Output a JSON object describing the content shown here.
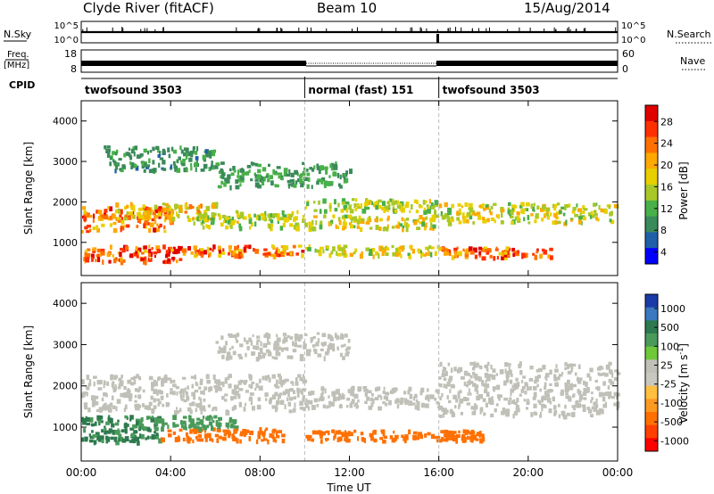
{
  "header": {
    "station": "Clyde River (fitACF)",
    "beam": "Beam 10",
    "date": "15/Aug/2014"
  },
  "noise_panel": {
    "left_label": "N.Sky",
    "left_ticks": [
      "10^5",
      "10^0"
    ],
    "right_label": "N.Search",
    "right_ticks": [
      "10^5",
      "10^0"
    ]
  },
  "freq_panel": {
    "left_label_1": "Freq.",
    "left_label_2": "[MHz]",
    "left_ticks": [
      "18",
      "8"
    ],
    "right_label": "Nave",
    "right_ticks": [
      "60",
      "0"
    ]
  },
  "cpid_panel": {
    "label": "CPID",
    "segments": [
      {
        "text": "twofsound 3503",
        "start_hour": 0,
        "end_hour": 10
      },
      {
        "text": "normal (fast) 151",
        "start_hour": 10,
        "end_hour": 16
      },
      {
        "text": "twofsound 3503",
        "start_hour": 16,
        "end_hour": 24
      }
    ]
  },
  "x_axis": {
    "label": "Time UT",
    "ticks": [
      "00:00",
      "04:00",
      "08:00",
      "12:00",
      "16:00",
      "20:00",
      "00:00"
    ],
    "range_hours": [
      0,
      24
    ]
  },
  "power_colorbar": {
    "label": "Power [dB]",
    "ticks": [
      "28",
      "24",
      "20",
      "16",
      "12",
      "8",
      "4"
    ],
    "colors": [
      "#e00000",
      "#ff3000",
      "#ff7000",
      "#ffa800",
      "#e8d000",
      "#a8c828",
      "#48b048",
      "#3a8a5a",
      "#1f5fa8",
      "#0000ff"
    ]
  },
  "velocity_colorbar": {
    "label": "Velocity [m s",
    "label_sup": "-1",
    "label_end": "]",
    "ticks": [
      "1000",
      "500",
      "100",
      "25",
      "-25",
      "-100",
      "-500",
      "-1000"
    ],
    "colors": [
      "#1a3aa8",
      "#3a78c0",
      "#2e7a4e",
      "#4a9a5a",
      "#6ec83a",
      "#c0c0b8",
      "#c8c8c0",
      "#ffc040",
      "#ff9a20",
      "#ff7000",
      "#ff4000",
      "#ff0000"
    ]
  },
  "chart_data": [
    {
      "type": "heatmap",
      "title": "Power",
      "ylabel": "Slant Range [km]",
      "xlabel": "",
      "ylim": [
        180,
        4500
      ],
      "xlim": [
        0,
        24
      ],
      "yticks": [
        "1000",
        "2000",
        "3000",
        "4000"
      ],
      "colorbar_range": [
        0,
        30
      ],
      "bands": [
        {
          "t0": 0.0,
          "t1": 4.0,
          "r0": 1300,
          "r1": 1900,
          "value": 22
        },
        {
          "t0": 0.0,
          "t1": 4.5,
          "r0": 550,
          "r1": 950,
          "value": 24
        },
        {
          "t0": 1.5,
          "t1": 6.0,
          "r0": 1600,
          "r1": 2000,
          "value": 17
        },
        {
          "t0": 4.5,
          "t1": 10.0,
          "r0": 700,
          "r1": 950,
          "value": 22
        },
        {
          "t0": 5.0,
          "t1": 10.0,
          "r0": 1400,
          "r1": 1800,
          "value": 14
        },
        {
          "t0": 10.0,
          "t1": 16.0,
          "r0": 1350,
          "r1": 1700,
          "value": 16
        },
        {
          "t0": 10.0,
          "t1": 16.0,
          "r0": 1800,
          "r1": 2100,
          "value": 14
        },
        {
          "t0": 10.0,
          "t1": 16.0,
          "r0": 700,
          "r1": 950,
          "value": 16
        },
        {
          "t0": 16.0,
          "t1": 21.0,
          "r0": 650,
          "r1": 900,
          "value": 22
        },
        {
          "t0": 16.0,
          "t1": 24.0,
          "r0": 1500,
          "r1": 2000,
          "value": 15
        },
        {
          "t0": 1.0,
          "t1": 6.0,
          "r0": 2800,
          "r1": 3400,
          "value": 8
        },
        {
          "t0": 6.0,
          "t1": 12.0,
          "r0": 2400,
          "r1": 3000,
          "value": 9
        }
      ]
    },
    {
      "type": "heatmap",
      "title": "Velocity",
      "ylabel": "Slant Range [km]",
      "xlabel": "Time UT",
      "ylim": [
        180,
        4500
      ],
      "xlim": [
        0,
        24
      ],
      "yticks": [
        "1000",
        "2000",
        "3000",
        "4000"
      ],
      "colorbar_range": [
        -1000,
        1000
      ],
      "bands": [
        {
          "t0": 0.0,
          "t1": 10.0,
          "r0": 1400,
          "r1": 2300,
          "value": 0
        },
        {
          "t0": 0.0,
          "t1": 3.5,
          "r0": 650,
          "r1": 1300,
          "value": 120
        },
        {
          "t0": 3.5,
          "t1": 9.0,
          "r0": 700,
          "r1": 1000,
          "value": -150
        },
        {
          "t0": 2.5,
          "t1": 7.0,
          "r0": 1000,
          "r1": 1300,
          "value": 60
        },
        {
          "t0": 10.0,
          "t1": 16.0,
          "r0": 1500,
          "r1": 2000,
          "value": 0
        },
        {
          "t0": 10.0,
          "t1": 16.0,
          "r0": 700,
          "r1": 950,
          "value": -300
        },
        {
          "t0": 16.0,
          "t1": 24.0,
          "r0": 1300,
          "r1": 2600,
          "value": 0
        },
        {
          "t0": 16.0,
          "t1": 18.0,
          "r0": 700,
          "r1": 950,
          "value": -300
        },
        {
          "t0": 6.0,
          "t1": 12.0,
          "r0": 2700,
          "r1": 3300,
          "value": 0
        }
      ]
    }
  ]
}
